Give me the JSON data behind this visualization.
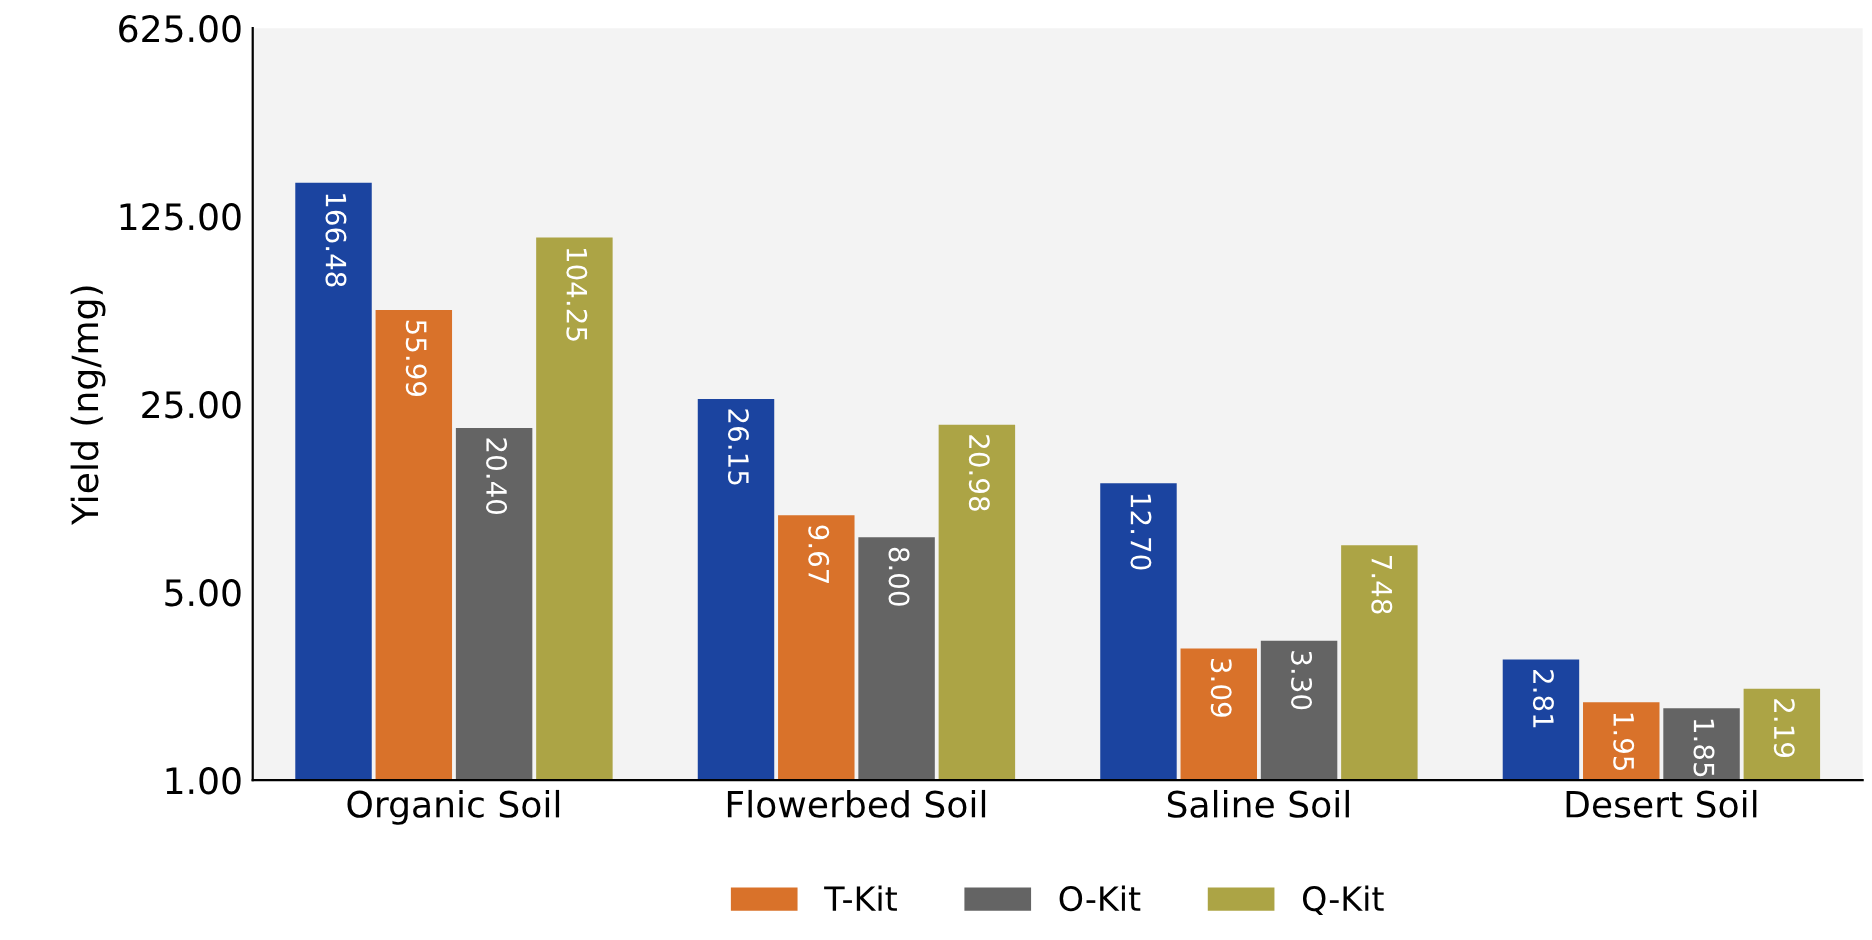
{
  "chart_data": {
    "type": "bar",
    "ylabel": "Yield (ng/mg)",
    "categories": [
      "Organic Soil",
      "Flowerbed Soil",
      "Saline Soil",
      "Desert Soil"
    ],
    "series": [
      {
        "color": "#1b44a0",
        "values": [
          166.48,
          26.15,
          12.7,
          2.81
        ],
        "value_labels": [
          "166.48",
          "26.15",
          "12.70",
          "2.81"
        ]
      },
      {
        "name": "T-Kit",
        "color": "#d9722a",
        "values": [
          55.99,
          9.67,
          3.09,
          1.95
        ],
        "value_labels": [
          "55.99",
          "9.67",
          "3.09",
          "1.95"
        ]
      },
      {
        "name": "O-Kit",
        "color": "#646464",
        "values": [
          20.4,
          8.0,
          3.3,
          1.85
        ],
        "value_labels": [
          "20.40",
          "8.00",
          "3.30",
          "1.85"
        ]
      },
      {
        "name": "Q-Kit",
        "color": "#aca445",
        "values": [
          104.25,
          20.98,
          7.48,
          2.19
        ],
        "value_labels": [
          "104.25",
          "20.98",
          "7.48",
          "2.19"
        ]
      }
    ],
    "log": true,
    "ylim": [
      1,
      625
    ],
    "yticks": [
      {
        "value": 1,
        "label": "1.00"
      },
      {
        "value": 5,
        "label": "5.00"
      },
      {
        "value": 25,
        "label": "25.00"
      },
      {
        "value": 125,
        "label": "125.00"
      },
      {
        "value": 625,
        "label": "625.00"
      }
    ],
    "grid": false,
    "legend": "bottom"
  }
}
